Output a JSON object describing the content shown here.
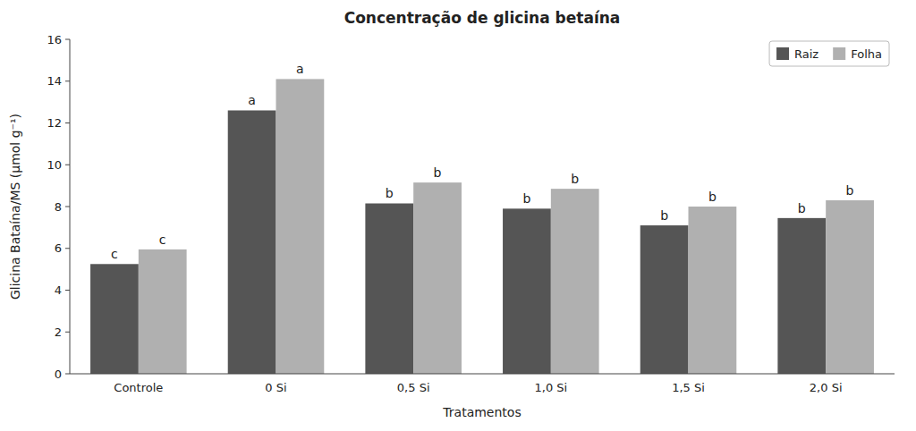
{
  "chart_data": {
    "type": "bar",
    "title": "Concentração de glicina betaína",
    "x_label": "Tratamentos",
    "y_label": "Glicina Bataína/MS (µmol g⁻¹)",
    "categories": [
      "Controle",
      "0 Si",
      "0,5 Si",
      "1,0 Si",
      "1,5 Si",
      "2,0 Si"
    ],
    "series": [
      {
        "name": "Raiz",
        "color": "#555555",
        "values": [
          5.25,
          12.6,
          8.15,
          7.9,
          7.1,
          7.45
        ],
        "annotations": [
          "c",
          "a",
          "b",
          "b",
          "b",
          "b"
        ]
      },
      {
        "name": "Folha",
        "color": "#b0b0b0",
        "values": [
          5.95,
          14.1,
          9.15,
          8.85,
          8.0,
          8.3
        ],
        "annotations": [
          "c",
          "a",
          "b",
          "b",
          "b",
          "b"
        ]
      }
    ],
    "ylim": [
      0,
      16
    ],
    "yticks": [
      0,
      2,
      4,
      6,
      8,
      10,
      12,
      14,
      16
    ],
    "grid": false,
    "legend": "upper right"
  }
}
